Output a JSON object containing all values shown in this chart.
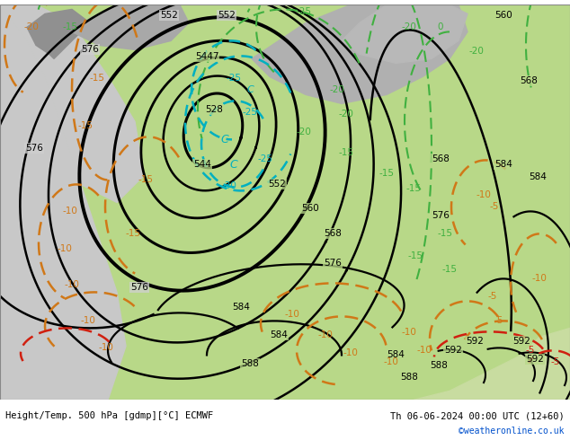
{
  "title_left": "Height/Temp. 500 hPa [gdmp][°C] ECMWF",
  "title_right": "Th 06-06-2024 00:00 UTC (12+60)",
  "credit": "©weatheronline.co.uk",
  "bg_land": "#b8d888",
  "bg_sea": "#c8c8c8",
  "bg_white": "#e8e8e8",
  "cc_black": "#000000",
  "cc_cyan": "#00b0c0",
  "cc_green": "#40b040",
  "cc_orange": "#d07818",
  "cc_red": "#d02010",
  "fig_width": 6.34,
  "fig_height": 4.9,
  "dpi": 100
}
